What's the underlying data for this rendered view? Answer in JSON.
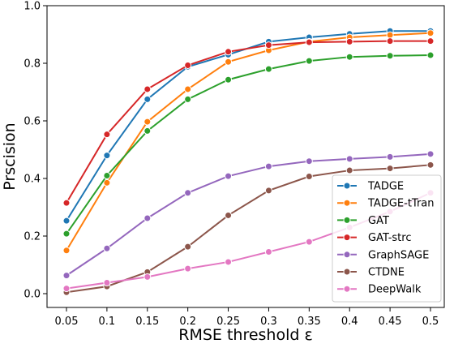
{
  "chart_data": {
    "type": "line",
    "xlabel": "RMSE threshold ε",
    "ylabel": "Prscision",
    "x": [
      "0.05",
      "0.1",
      "0.15",
      "0.2",
      "0.25",
      "0.3",
      "0.35",
      "0.4",
      "0.45",
      "0.5"
    ],
    "ylim": [
      0.0,
      1.0
    ],
    "yticks": [
      "0.0",
      "0.2",
      "0.4",
      "0.6",
      "0.8",
      "1.0"
    ],
    "yticks_values": [
      0.0,
      0.2,
      0.4,
      0.6,
      0.8,
      1.0
    ],
    "grid": false,
    "legend_position": "lower-right",
    "series": [
      {
        "name": "TADGE",
        "color": "#1f77b4",
        "values": [
          0.253,
          0.48,
          0.675,
          0.788,
          0.83,
          0.875,
          0.89,
          0.902,
          0.912,
          0.912
        ]
      },
      {
        "name": "TADGE-tTran",
        "color": "#ff7f0e",
        "values": [
          0.15,
          0.385,
          0.597,
          0.71,
          0.805,
          0.845,
          0.875,
          0.89,
          0.898,
          0.905
        ]
      },
      {
        "name": "GAT",
        "color": "#2ca02c",
        "values": [
          0.208,
          0.41,
          0.565,
          0.675,
          0.743,
          0.78,
          0.808,
          0.822,
          0.826,
          0.828
        ]
      },
      {
        "name": "GAT-strc",
        "color": "#d62728",
        "values": [
          0.315,
          0.553,
          0.71,
          0.793,
          0.84,
          0.863,
          0.873,
          0.875,
          0.877,
          0.877
        ]
      },
      {
        "name": "GraphSAGE",
        "color": "#9467bd",
        "values": [
          0.063,
          0.157,
          0.262,
          0.35,
          0.408,
          0.442,
          0.46,
          0.468,
          0.475,
          0.485
        ]
      },
      {
        "name": "CTDNE",
        "color": "#8c564b",
        "values": [
          0.005,
          0.025,
          0.075,
          0.163,
          0.272,
          0.358,
          0.407,
          0.428,
          0.435,
          0.447
        ]
      },
      {
        "name": "DeepWalk",
        "color": "#e377c2",
        "values": [
          0.018,
          0.038,
          0.058,
          0.087,
          0.11,
          0.145,
          0.18,
          0.23,
          0.285,
          0.35
        ]
      }
    ]
  }
}
